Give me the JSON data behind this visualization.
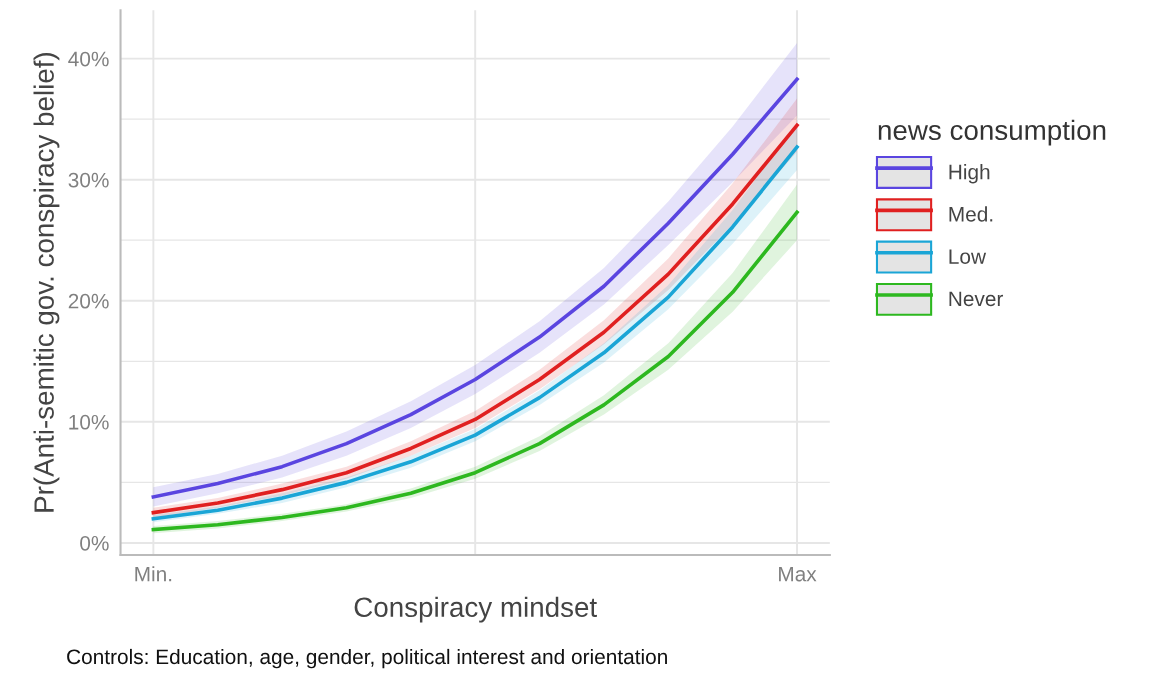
{
  "chart_data": {
    "type": "line",
    "xlabel": "Conspiracy mindset",
    "ylabel": "Pr(Anti-semitic gov. conspiracy belief)",
    "legend_title": "news consumption",
    "legend": "right",
    "grid": true,
    "line_style": "solid",
    "marker": "none",
    "categories": [
      "Min.",
      null,
      null,
      null,
      null,
      null,
      null,
      null,
      null,
      null,
      "Max"
    ],
    "ylim": [
      -1,
      44
    ],
    "yticks": [
      {
        "value": 0,
        "label": "0%"
      },
      {
        "value": 10,
        "label": "10%"
      },
      {
        "value": 20,
        "label": "20%"
      },
      {
        "value": 30,
        "label": "30%"
      },
      {
        "value": 40,
        "label": "40%"
      }
    ],
    "annotations": [
      "Controls: Education, age, gender, political interest and orientation"
    ],
    "series": [
      {
        "name": "High",
        "color": "#5a45e0",
        "values": [
          3.8,
          4.9,
          6.3,
          8.2,
          10.6,
          13.5,
          17.0,
          21.2,
          26.4,
          32.1,
          38.3
        ],
        "lower": [
          3.0,
          4.1,
          5.4,
          7.2,
          9.5,
          12.3,
          15.7,
          19.7,
          24.6,
          29.8,
          35.3
        ],
        "upper": [
          4.6,
          5.7,
          7.2,
          9.2,
          11.7,
          14.7,
          18.3,
          22.7,
          28.2,
          34.4,
          41.3
        ]
      },
      {
        "name": "Med.",
        "color": "#e02020",
        "values": [
          2.5,
          3.3,
          4.4,
          5.8,
          7.8,
          10.2,
          13.5,
          17.4,
          22.2,
          28.0,
          34.5
        ],
        "lower": [
          2.1,
          2.9,
          3.9,
          5.3,
          7.2,
          9.5,
          12.7,
          16.4,
          20.9,
          26.3,
          32.3
        ],
        "upper": [
          2.9,
          3.7,
          4.9,
          6.3,
          8.4,
          10.9,
          14.3,
          18.4,
          23.5,
          29.7,
          36.7
        ]
      },
      {
        "name": "Low",
        "color": "#1aa5d6",
        "values": [
          2.0,
          2.7,
          3.7,
          5.0,
          6.7,
          8.9,
          12.0,
          15.7,
          20.3,
          26.1,
          32.7
        ],
        "lower": [
          1.7,
          2.4,
          3.3,
          4.6,
          6.2,
          8.4,
          11.4,
          14.9,
          19.3,
          24.7,
          30.8
        ],
        "upper": [
          2.3,
          3.0,
          4.1,
          5.4,
          7.2,
          9.4,
          12.6,
          16.5,
          21.3,
          27.5,
          34.6
        ]
      },
      {
        "name": "Never",
        "color": "#2db81f",
        "values": [
          1.1,
          1.5,
          2.1,
          2.9,
          4.1,
          5.8,
          8.2,
          11.4,
          15.4,
          20.7,
          27.3
        ],
        "lower": [
          0.8,
          1.2,
          1.8,
          2.6,
          3.7,
          5.3,
          7.6,
          10.6,
          14.3,
          19.1,
          25.0
        ],
        "upper": [
          1.4,
          1.8,
          2.4,
          3.2,
          4.5,
          6.3,
          8.8,
          12.2,
          16.5,
          22.3,
          29.6
        ]
      }
    ]
  }
}
